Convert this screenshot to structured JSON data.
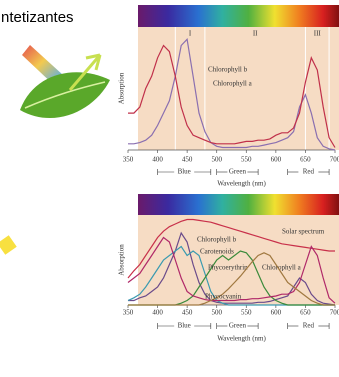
{
  "heading": "ntetizantes",
  "chart_data": [
    {
      "type": "line",
      "ylabel": "Absorption",
      "xlabel": "Wavelength (nm)",
      "regions": [
        "I",
        "II",
        "III"
      ],
      "bands": [
        "Blue",
        "Green",
        "Red"
      ],
      "xlim": [
        350,
        700
      ],
      "ylim": [
        0,
        1
      ],
      "xticks": [
        350,
        400,
        450,
        500,
        550,
        600,
        650,
        700
      ],
      "x": [
        350,
        360,
        370,
        380,
        390,
        400,
        410,
        420,
        430,
        440,
        450,
        460,
        470,
        480,
        490,
        500,
        510,
        520,
        530,
        540,
        550,
        560,
        570,
        580,
        590,
        600,
        610,
        620,
        630,
        640,
        650,
        660,
        670,
        680,
        690,
        700
      ],
      "series": [
        {
          "name": "Chlorophyll b",
          "color": "#8a6fb0",
          "values": [
            0.05,
            0.05,
            0.06,
            0.08,
            0.12,
            0.2,
            0.3,
            0.4,
            0.6,
            0.85,
            0.9,
            0.6,
            0.3,
            0.15,
            0.06,
            0.03,
            0.02,
            0.02,
            0.02,
            0.02,
            0.02,
            0.03,
            0.03,
            0.04,
            0.05,
            0.06,
            0.08,
            0.1,
            0.15,
            0.35,
            0.45,
            0.3,
            0.1,
            0.03,
            0.01,
            0
          ]
        },
        {
          "name": "Chlorophyll a",
          "color": "#c0304a",
          "values": [
            0.3,
            0.3,
            0.35,
            0.5,
            0.6,
            0.75,
            0.85,
            0.8,
            0.6,
            0.35,
            0.2,
            0.12,
            0.1,
            0.08,
            0.06,
            0.05,
            0.05,
            0.05,
            0.05,
            0.06,
            0.07,
            0.07,
            0.08,
            0.08,
            0.09,
            0.12,
            0.14,
            0.14,
            0.18,
            0.3,
            0.55,
            0.75,
            0.65,
            0.35,
            0.1,
            0.02
          ]
        }
      ]
    },
    {
      "type": "line",
      "ylabel": "Absorption",
      "xlabel": "Wavelength (nm)",
      "bands": [
        "Blue",
        "Green",
        "Red"
      ],
      "xlim": [
        350,
        700
      ],
      "ylim": [
        0,
        1
      ],
      "xticks": [
        350,
        400,
        450,
        500,
        550,
        600,
        650,
        700
      ],
      "x": [
        350,
        360,
        370,
        380,
        390,
        400,
        410,
        420,
        430,
        440,
        450,
        460,
        470,
        480,
        490,
        500,
        510,
        520,
        530,
        540,
        550,
        560,
        570,
        580,
        590,
        600,
        610,
        620,
        630,
        640,
        650,
        660,
        670,
        680,
        690,
        700
      ],
      "series": [
        {
          "name": "Solar spectrum",
          "color": "#c8304a",
          "values": [
            0.3,
            0.38,
            0.45,
            0.55,
            0.65,
            0.75,
            0.82,
            0.87,
            0.9,
            0.93,
            0.95,
            0.95,
            0.94,
            0.93,
            0.92,
            0.9,
            0.88,
            0.86,
            0.84,
            0.82,
            0.8,
            0.78,
            0.76,
            0.74,
            0.72,
            0.7,
            0.68,
            0.67,
            0.66,
            0.65,
            0.64,
            0.63,
            0.62,
            0.61,
            0.6,
            0.6
          ]
        },
        {
          "name": "Chlorophyll b",
          "color": "#6a4a8a",
          "values": [
            0.05,
            0.05,
            0.08,
            0.1,
            0.15,
            0.2,
            0.3,
            0.45,
            0.6,
            0.8,
            0.7,
            0.45,
            0.25,
            0.12,
            0.05,
            0.03,
            0.02,
            0.02,
            0.02,
            0.02,
            0.02,
            0.02,
            0.03,
            0.03,
            0.04,
            0.06,
            0.08,
            0.1,
            0.2,
            0.3,
            0.25,
            0.12,
            0.05,
            0.02,
            0.01,
            0
          ]
        },
        {
          "name": "Carotenoids",
          "color": "#3a9ab0",
          "values": [
            0.05,
            0.08,
            0.12,
            0.2,
            0.3,
            0.4,
            0.5,
            0.55,
            0.6,
            0.65,
            0.55,
            0.6,
            0.55,
            0.35,
            0.15,
            0.05,
            0.02,
            0,
            0,
            0,
            0,
            0,
            0,
            0,
            0,
            0,
            0,
            0,
            0,
            0,
            0,
            0,
            0,
            0,
            0,
            0
          ]
        },
        {
          "name": "Phycoerythrin",
          "color": "#3a8a3a",
          "values": [
            0,
            0,
            0,
            0,
            0,
            0,
            0,
            0,
            0,
            0.02,
            0.05,
            0.1,
            0.2,
            0.3,
            0.4,
            0.5,
            0.55,
            0.5,
            0.55,
            0.6,
            0.58,
            0.5,
            0.35,
            0.2,
            0.1,
            0.05,
            0.02,
            0,
            0,
            0,
            0,
            0,
            0,
            0,
            0,
            0
          ]
        },
        {
          "name": "Chlorophyll a",
          "color": "#b02868",
          "values": [
            0.25,
            0.3,
            0.35,
            0.45,
            0.55,
            0.65,
            0.75,
            0.7,
            0.5,
            0.3,
            0.15,
            0.1,
            0.08,
            0.06,
            0.05,
            0.05,
            0.05,
            0.05,
            0.05,
            0.06,
            0.06,
            0.07,
            0.07,
            0.08,
            0.09,
            0.1,
            0.12,
            0.12,
            0.15,
            0.25,
            0.45,
            0.65,
            0.55,
            0.3,
            0.08,
            0.02
          ]
        },
        {
          "name": "Phycocyanin",
          "color": "#a07840",
          "values": [
            0,
            0,
            0,
            0,
            0,
            0,
            0,
            0,
            0,
            0,
            0,
            0,
            0,
            0.02,
            0.05,
            0.08,
            0.12,
            0.18,
            0.25,
            0.32,
            0.4,
            0.48,
            0.55,
            0.58,
            0.55,
            0.45,
            0.35,
            0.25,
            0.2,
            0.15,
            0.1,
            0.05,
            0.02,
            0,
            0,
            0
          ]
        }
      ]
    }
  ]
}
